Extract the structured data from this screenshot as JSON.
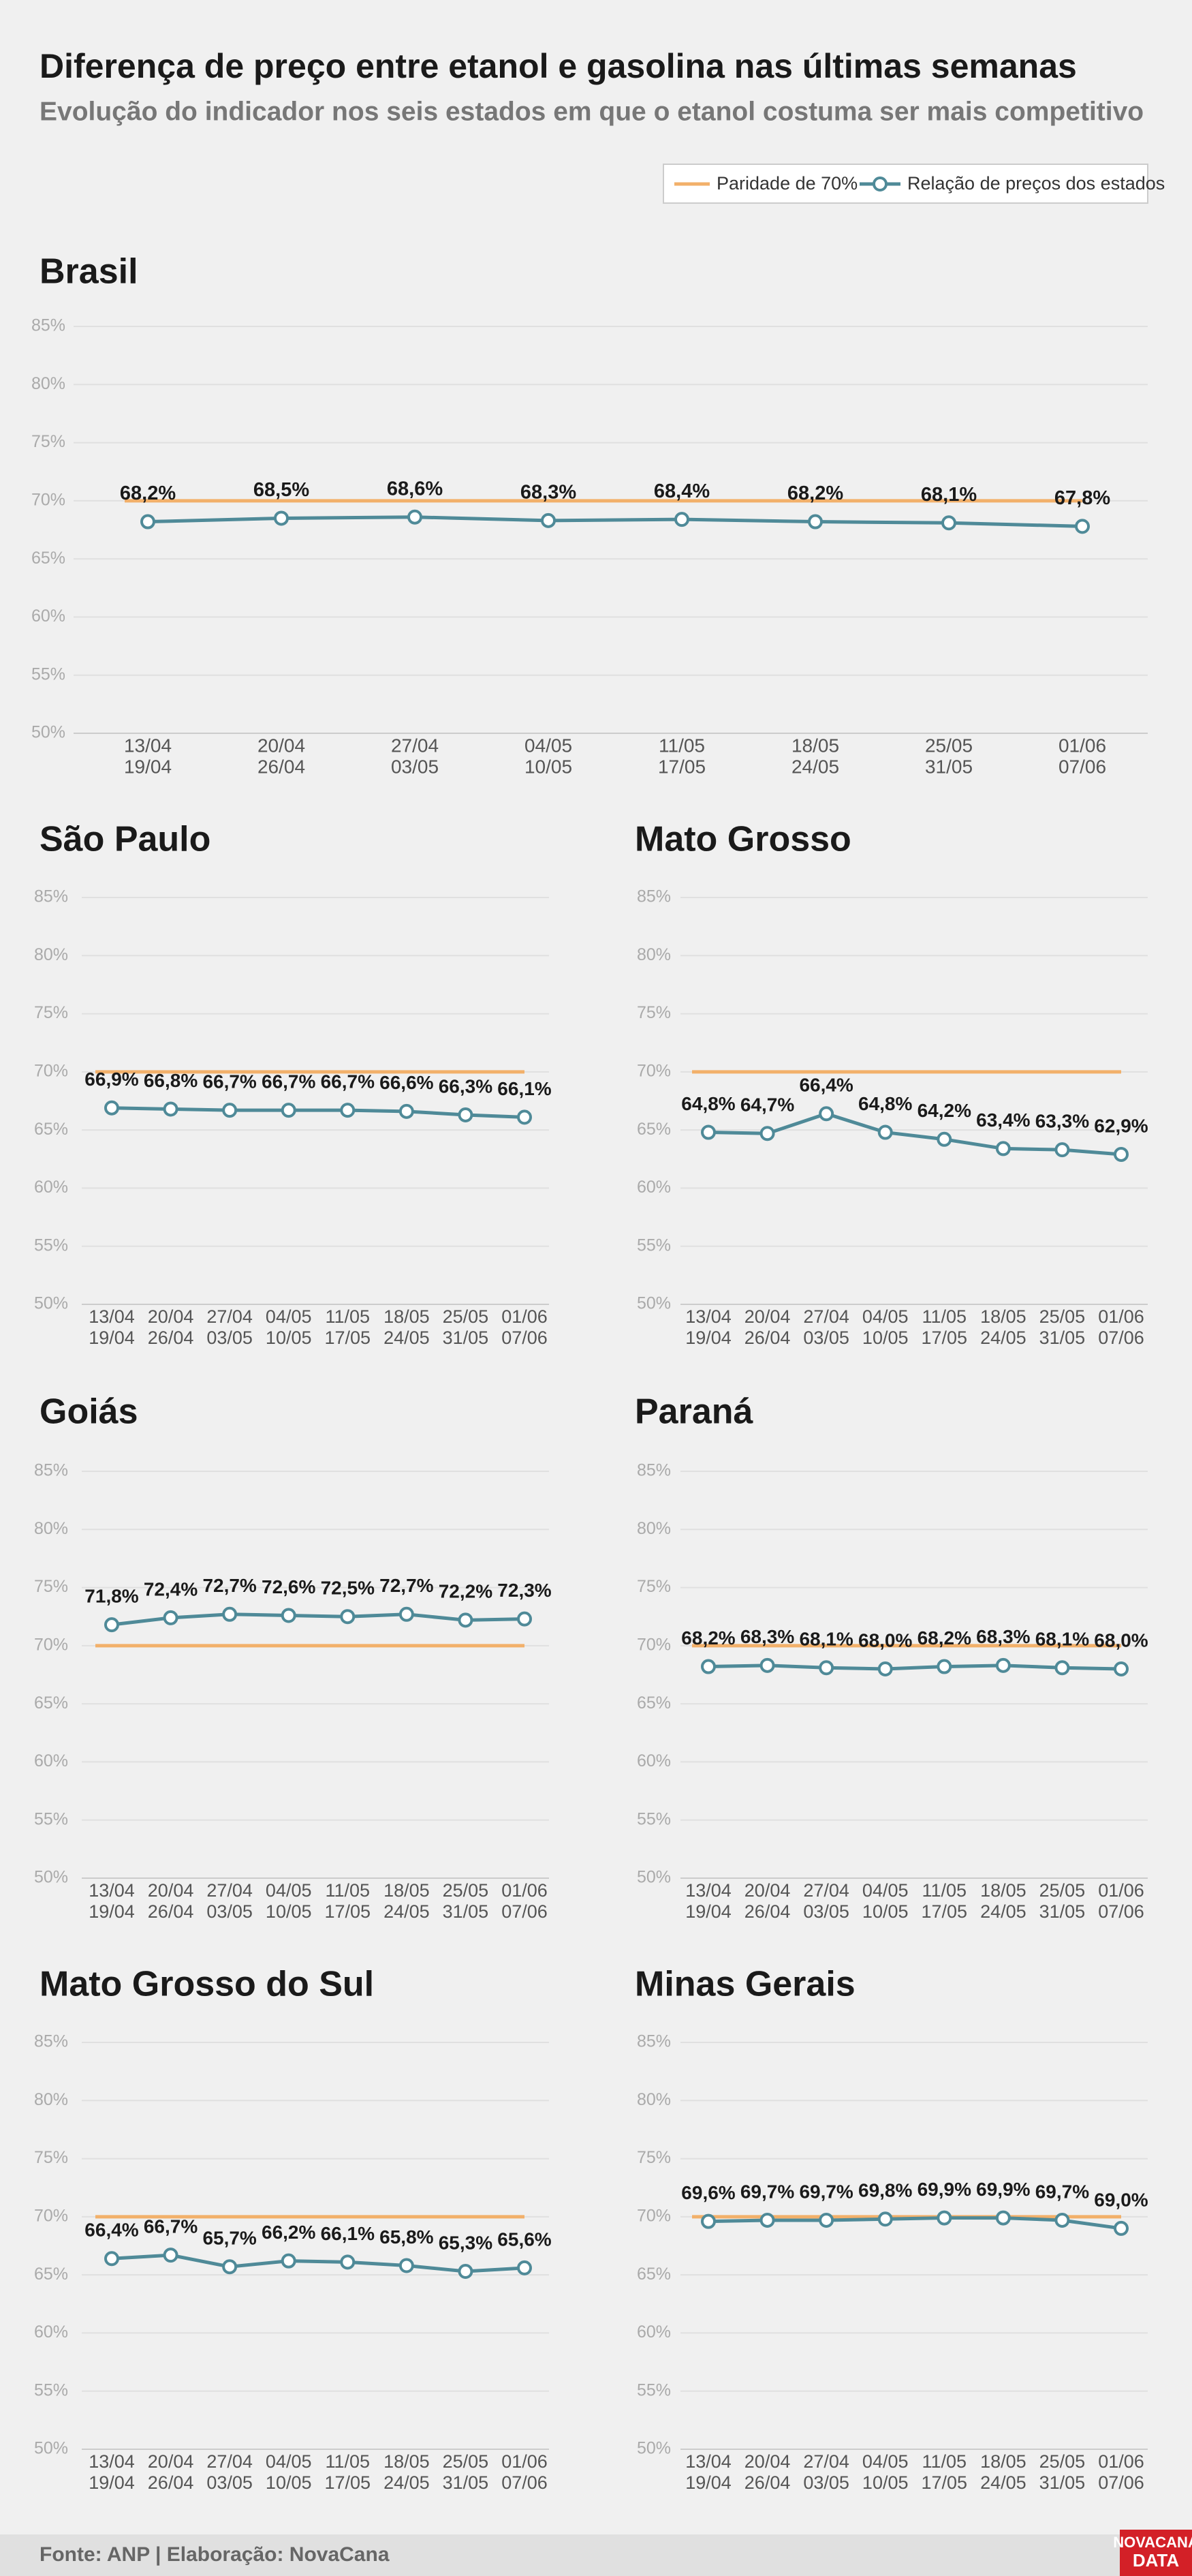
{
  "title": "Diferença de preço entre etanol e gasolina nas últimas semanas",
  "subtitle": "Evolução do indicador nos seis estados em que o etanol costuma ser mais competitivo",
  "legend": [
    {
      "name": "Paridade de 70%",
      "color": "#f2b06a"
    },
    {
      "name": "Relação de preços dos estados",
      "color": "#4f8a98"
    }
  ],
  "source": "Fonte: ANP | Elaboração: NovaCana",
  "logo": [
    "NOVACANA",
    "DATA"
  ],
  "chart_data": [
    {
      "type": "line",
      "title": "Brasil",
      "categories": [
        [
          "13/04",
          "19/04"
        ],
        [
          "20/04",
          "26/04"
        ],
        [
          "27/04",
          "03/05"
        ],
        [
          "04/05",
          "10/05"
        ],
        [
          "11/05",
          "17/05"
        ],
        [
          "18/05",
          "24/05"
        ],
        [
          "25/05",
          "31/05"
        ],
        [
          "01/06",
          "07/06"
        ]
      ],
      "series": [
        {
          "color": "#f2b06a",
          "values": [
            70,
            70,
            70,
            70,
            70,
            70,
            70,
            70
          ]
        },
        {
          "color": "#4f8a98",
          "values": [
            68.2,
            68.5,
            68.6,
            68.3,
            68.4,
            68.2,
            68.1,
            67.8
          ],
          "value_labels": [
            "68,2%",
            "68,5%",
            "68,6%",
            "68,3%",
            "68,4%",
            "68,2%",
            "68,1%",
            "67,8%"
          ]
        }
      ],
      "ylim": [
        50,
        85
      ],
      "yticks": [
        {
          "value": 50,
          "label": "50%"
        },
        {
          "value": 55,
          "label": "55%"
        },
        {
          "value": 60,
          "label": "60%"
        },
        {
          "value": 65,
          "label": "65%"
        },
        {
          "value": 70,
          "label": "70%"
        },
        {
          "value": 75,
          "label": "75%"
        },
        {
          "value": 80,
          "label": "80%"
        },
        {
          "value": 85,
          "label": "85%"
        }
      ],
      "grid": true
    },
    {
      "type": "line",
      "title": "São Paulo",
      "categories": [
        [
          "13/04",
          "19/04"
        ],
        [
          "20/04",
          "26/04"
        ],
        [
          "27/04",
          "03/05"
        ],
        [
          "04/05",
          "10/05"
        ],
        [
          "11/05",
          "17/05"
        ],
        [
          "18/05",
          "24/05"
        ],
        [
          "25/05",
          "31/05"
        ],
        [
          "01/06",
          "07/06"
        ]
      ],
      "series": [
        {
          "color": "#f2b06a",
          "values": [
            70,
            70,
            70,
            70,
            70,
            70,
            70,
            70
          ]
        },
        {
          "color": "#4f8a98",
          "values": [
            66.9,
            66.8,
            66.7,
            66.7,
            66.7,
            66.6,
            66.3,
            66.1
          ],
          "value_labels": [
            "66,9%",
            "66,8%",
            "66,7%",
            "66,7%",
            "66,7%",
            "66,6%",
            "66,3%",
            "66,1%"
          ]
        }
      ],
      "ylim": [
        50,
        85
      ],
      "yticks": [
        {
          "value": 50,
          "label": "50%"
        },
        {
          "value": 55,
          "label": "55%"
        },
        {
          "value": 60,
          "label": "60%"
        },
        {
          "value": 65,
          "label": "65%"
        },
        {
          "value": 70,
          "label": "70%"
        },
        {
          "value": 75,
          "label": "75%"
        },
        {
          "value": 80,
          "label": "80%"
        },
        {
          "value": 85,
          "label": "85%"
        }
      ],
      "grid": true
    },
    {
      "type": "line",
      "title": "Mato Grosso",
      "categories": [
        [
          "13/04",
          "19/04"
        ],
        [
          "20/04",
          "26/04"
        ],
        [
          "27/04",
          "03/05"
        ],
        [
          "04/05",
          "10/05"
        ],
        [
          "11/05",
          "17/05"
        ],
        [
          "18/05",
          "24/05"
        ],
        [
          "25/05",
          "31/05"
        ],
        [
          "01/06",
          "07/06"
        ]
      ],
      "series": [
        {
          "color": "#f2b06a",
          "values": [
            70,
            70,
            70,
            70,
            70,
            70,
            70,
            70
          ]
        },
        {
          "color": "#4f8a98",
          "values": [
            64.8,
            64.7,
            66.4,
            64.8,
            64.2,
            63.4,
            63.3,
            62.9
          ],
          "value_labels": [
            "64,8%",
            "64,7%",
            "66,4%",
            "64,8%",
            "64,2%",
            "63,4%",
            "63,3%",
            "62,9%"
          ]
        }
      ],
      "ylim": [
        50,
        85
      ],
      "yticks": [
        {
          "value": 50,
          "label": "50%"
        },
        {
          "value": 55,
          "label": "55%"
        },
        {
          "value": 60,
          "label": "60%"
        },
        {
          "value": 65,
          "label": "65%"
        },
        {
          "value": 70,
          "label": "70%"
        },
        {
          "value": 75,
          "label": "75%"
        },
        {
          "value": 80,
          "label": "80%"
        },
        {
          "value": 85,
          "label": "85%"
        }
      ],
      "grid": true
    },
    {
      "type": "line",
      "title": "Goiás",
      "categories": [
        [
          "13/04",
          "19/04"
        ],
        [
          "20/04",
          "26/04"
        ],
        [
          "27/04",
          "03/05"
        ],
        [
          "04/05",
          "10/05"
        ],
        [
          "11/05",
          "17/05"
        ],
        [
          "18/05",
          "24/05"
        ],
        [
          "25/05",
          "31/05"
        ],
        [
          "01/06",
          "07/06"
        ]
      ],
      "series": [
        {
          "color": "#f2b06a",
          "values": [
            70,
            70,
            70,
            70,
            70,
            70,
            70,
            70
          ]
        },
        {
          "color": "#4f8a98",
          "values": [
            71.8,
            72.4,
            72.7,
            72.6,
            72.5,
            72.7,
            72.2,
            72.3
          ],
          "value_labels": [
            "71,8%",
            "72,4%",
            "72,7%",
            "72,6%",
            "72,5%",
            "72,7%",
            "72,2%",
            "72,3%"
          ]
        }
      ],
      "ylim": [
        50,
        85
      ],
      "yticks": [
        {
          "value": 50,
          "label": "50%"
        },
        {
          "value": 55,
          "label": "55%"
        },
        {
          "value": 60,
          "label": "60%"
        },
        {
          "value": 65,
          "label": "65%"
        },
        {
          "value": 70,
          "label": "70%"
        },
        {
          "value": 75,
          "label": "75%"
        },
        {
          "value": 80,
          "label": "80%"
        },
        {
          "value": 85,
          "label": "85%"
        }
      ],
      "grid": true
    },
    {
      "type": "line",
      "title": "Paraná",
      "categories": [
        [
          "13/04",
          "19/04"
        ],
        [
          "20/04",
          "26/04"
        ],
        [
          "27/04",
          "03/05"
        ],
        [
          "04/05",
          "10/05"
        ],
        [
          "11/05",
          "17/05"
        ],
        [
          "18/05",
          "24/05"
        ],
        [
          "25/05",
          "31/05"
        ],
        [
          "01/06",
          "07/06"
        ]
      ],
      "series": [
        {
          "color": "#f2b06a",
          "values": [
            70,
            70,
            70,
            70,
            70,
            70,
            70,
            70
          ]
        },
        {
          "color": "#4f8a98",
          "values": [
            68.2,
            68.3,
            68.1,
            68.0,
            68.2,
            68.3,
            68.1,
            68.0
          ],
          "value_labels": [
            "68,2%",
            "68,3%",
            "68,1%",
            "68,0%",
            "68,2%",
            "68,3%",
            "68,1%",
            "68,0%"
          ]
        }
      ],
      "ylim": [
        50,
        85
      ],
      "yticks": [
        {
          "value": 50,
          "label": "50%"
        },
        {
          "value": 55,
          "label": "55%"
        },
        {
          "value": 60,
          "label": "60%"
        },
        {
          "value": 65,
          "label": "65%"
        },
        {
          "value": 70,
          "label": "70%"
        },
        {
          "value": 75,
          "label": "75%"
        },
        {
          "value": 80,
          "label": "80%"
        },
        {
          "value": 85,
          "label": "85%"
        }
      ],
      "grid": true
    },
    {
      "type": "line",
      "title": "Mato Grosso do Sul",
      "categories": [
        [
          "13/04",
          "19/04"
        ],
        [
          "20/04",
          "26/04"
        ],
        [
          "27/04",
          "03/05"
        ],
        [
          "04/05",
          "10/05"
        ],
        [
          "11/05",
          "17/05"
        ],
        [
          "18/05",
          "24/05"
        ],
        [
          "25/05",
          "31/05"
        ],
        [
          "01/06",
          "07/06"
        ]
      ],
      "series": [
        {
          "color": "#f2b06a",
          "values": [
            70,
            70,
            70,
            70,
            70,
            70,
            70,
            70
          ]
        },
        {
          "color": "#4f8a98",
          "values": [
            66.4,
            66.7,
            65.7,
            66.2,
            66.1,
            65.8,
            65.3,
            65.6
          ],
          "value_labels": [
            "66,4%",
            "66,7%",
            "65,7%",
            "66,2%",
            "66,1%",
            "65,8%",
            "65,3%",
            "65,6%"
          ]
        }
      ],
      "ylim": [
        50,
        85
      ],
      "yticks": [
        {
          "value": 50,
          "label": "50%"
        },
        {
          "value": 55,
          "label": "55%"
        },
        {
          "value": 60,
          "label": "60%"
        },
        {
          "value": 65,
          "label": "65%"
        },
        {
          "value": 70,
          "label": "70%"
        },
        {
          "value": 75,
          "label": "75%"
        },
        {
          "value": 80,
          "label": "80%"
        },
        {
          "value": 85,
          "label": "85%"
        }
      ],
      "grid": true
    },
    {
      "type": "line",
      "title": "Minas Gerais",
      "categories": [
        [
          "13/04",
          "19/04"
        ],
        [
          "20/04",
          "26/04"
        ],
        [
          "27/04",
          "03/05"
        ],
        [
          "04/05",
          "10/05"
        ],
        [
          "11/05",
          "17/05"
        ],
        [
          "18/05",
          "24/05"
        ],
        [
          "25/05",
          "31/05"
        ],
        [
          "01/06",
          "07/06"
        ]
      ],
      "series": [
        {
          "color": "#f2b06a",
          "values": [
            70,
            70,
            70,
            70,
            70,
            70,
            70,
            70
          ]
        },
        {
          "color": "#4f8a98",
          "values": [
            69.6,
            69.7,
            69.7,
            69.8,
            69.9,
            69.9,
            69.7,
            69.0
          ],
          "value_labels": [
            "69,6%",
            "69,7%",
            "69,7%",
            "69,8%",
            "69,9%",
            "69,9%",
            "69,7%",
            "69,0%"
          ]
        }
      ],
      "ylim": [
        50,
        85
      ],
      "yticks": [
        {
          "value": 50,
          "label": "50%"
        },
        {
          "value": 55,
          "label": "55%"
        },
        {
          "value": 60,
          "label": "60%"
        },
        {
          "value": 65,
          "label": "65%"
        },
        {
          "value": 70,
          "label": "70%"
        },
        {
          "value": 75,
          "label": "75%"
        },
        {
          "value": 80,
          "label": "80%"
        },
        {
          "value": 85,
          "label": "85%"
        }
      ],
      "grid": true
    }
  ]
}
